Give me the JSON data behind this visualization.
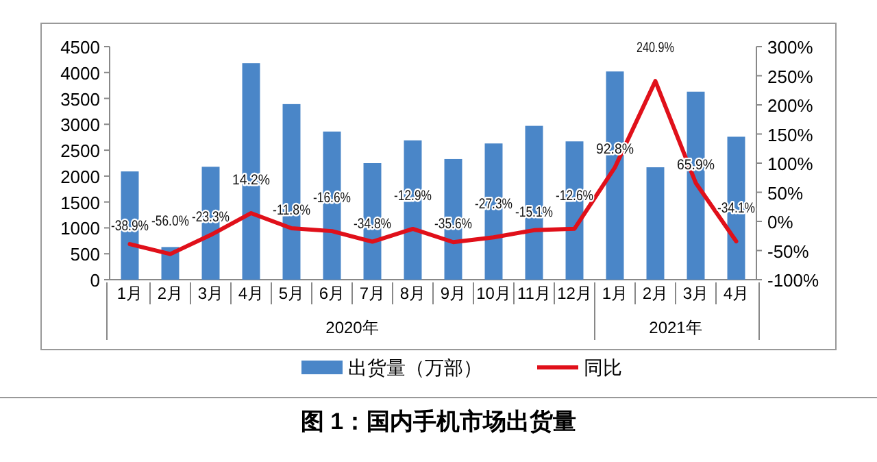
{
  "chart_data": {
    "type": "bar",
    "title": "图 1：国内手机市场出货量",
    "categories": [
      "1月",
      "2月",
      "3月",
      "4月",
      "5月",
      "6月",
      "7月",
      "8月",
      "9月",
      "10月",
      "11月",
      "12月",
      "1月",
      "2月",
      "3月",
      "4月"
    ],
    "annotations": [
      "2020年",
      "2021年"
    ],
    "series": [
      {
        "name": "出货量（万部）",
        "color": "#4a86c8",
        "values": [
          2090,
          630,
          2180,
          4180,
          3390,
          2860,
          2250,
          2690,
          2330,
          2630,
          2970,
          2670,
          4020,
          2170,
          3630,
          2760
        ]
      },
      {
        "name": "同比",
        "type": "line",
        "axis": "y2",
        "color": "#e0101a",
        "line_style": "solid",
        "values": [
          -38.9,
          -56.0,
          -23.3,
          14.2,
          -11.8,
          -16.6,
          -34.8,
          -12.9,
          -35.6,
          -27.3,
          -15.1,
          -12.6,
          92.8,
          240.9,
          65.9,
          -34.1
        ],
        "value_labels": [
          "-38.9%",
          "-56.0%",
          "-23.3%",
          "14.2%",
          "-11.8%",
          "-16.6%",
          "-34.8%",
          "-12.9%",
          "-35.6%",
          "-27.3%",
          "-15.1%",
          "-12.6%",
          "92.8%",
          "240.9%",
          "65.9%",
          "-34.1%"
        ]
      }
    ],
    "ylim": [
      0,
      4500
    ],
    "yticks": [
      0,
      500,
      1000,
      1500,
      2000,
      2500,
      3000,
      3500,
      4000,
      4500
    ],
    "y2lim": [
      -100,
      300
    ],
    "y2ticks": [
      {
        "value": -100,
        "label": "-100%"
      },
      {
        "value": -50,
        "label": "-50%"
      },
      {
        "value": 0,
        "label": "0%"
      },
      {
        "value": 50,
        "label": "50%"
      },
      {
        "value": 100,
        "label": "100%"
      },
      {
        "value": 150,
        "label": "150%"
      },
      {
        "value": 200,
        "label": "200%"
      },
      {
        "value": 250,
        "label": "250%"
      },
      {
        "value": 300,
        "label": "300%"
      }
    ],
    "grid": false,
    "legend": "bottom"
  }
}
